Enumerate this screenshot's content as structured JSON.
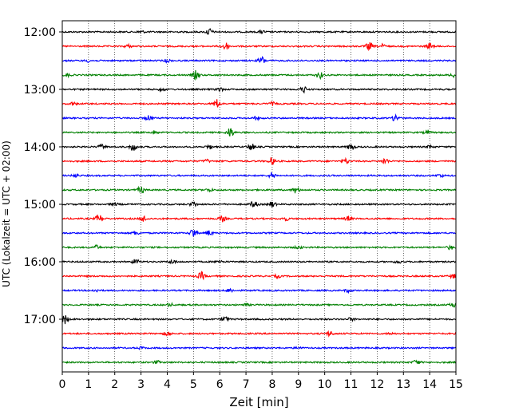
{
  "chart_data": {
    "type": "line",
    "xlabel": "Zeit  [min]",
    "ylabel": "UTC (Lokalzeit = UTC + 02:00)",
    "xlim": [
      0,
      15
    ],
    "x_ticks": [
      0,
      1,
      2,
      3,
      4,
      5,
      6,
      7,
      8,
      9,
      10,
      11,
      12,
      13,
      14,
      15
    ],
    "y_tick_labels": [
      "12:00",
      "13:00",
      "14:00",
      "15:00",
      "16:00",
      "17:00"
    ],
    "grid": true,
    "trace_colors": [
      "#000000",
      "#ff0000",
      "#0000ff",
      "#008000"
    ],
    "series": [
      {
        "start": "12:00",
        "events": [
          [
            5.6,
            0.7
          ],
          [
            7.6,
            0.3
          ],
          [
            3.0,
            0.25
          ]
        ]
      },
      {
        "start": "12:15",
        "events": [
          [
            6.2,
            0.9
          ],
          [
            11.7,
            0.8
          ],
          [
            14.0,
            0.6
          ],
          [
            12.2,
            0.4
          ],
          [
            2.5,
            0.3
          ]
        ]
      },
      {
        "start": "12:30",
        "events": [
          [
            7.6,
            0.8
          ],
          [
            4.0,
            0.3
          ],
          [
            1.0,
            0.25
          ]
        ]
      },
      {
        "start": "12:45",
        "events": [
          [
            5.1,
            0.9
          ],
          [
            9.8,
            0.7
          ],
          [
            14.9,
            0.4
          ],
          [
            0.2,
            0.3
          ]
        ]
      },
      {
        "start": "13:00",
        "events": [
          [
            9.2,
            0.6
          ],
          [
            6.0,
            0.4
          ],
          [
            3.8,
            0.3
          ]
        ]
      },
      {
        "start": "13:15",
        "events": [
          [
            5.9,
            0.9
          ],
          [
            0.4,
            0.3
          ],
          [
            8.0,
            0.3
          ]
        ]
      },
      {
        "start": "13:30",
        "events": [
          [
            12.7,
            0.7
          ],
          [
            3.3,
            0.5
          ],
          [
            7.4,
            0.3
          ]
        ]
      },
      {
        "start": "13:45",
        "events": [
          [
            6.4,
            1.0
          ],
          [
            3.5,
            0.3
          ],
          [
            13.9,
            0.3
          ]
        ]
      },
      {
        "start": "14:00",
        "events": [
          [
            2.7,
            0.8
          ],
          [
            7.2,
            0.7
          ],
          [
            11.0,
            0.8
          ],
          [
            1.5,
            0.5
          ],
          [
            5.6,
            0.4
          ],
          [
            14.0,
            0.3
          ]
        ]
      },
      {
        "start": "14:15",
        "events": [
          [
            8.0,
            0.7
          ],
          [
            12.3,
            0.6
          ],
          [
            10.8,
            0.5
          ],
          [
            5.5,
            0.3
          ]
        ]
      },
      {
        "start": "14:30",
        "events": [
          [
            8.0,
            0.6
          ],
          [
            0.5,
            0.3
          ],
          [
            14.4,
            0.3
          ]
        ]
      },
      {
        "start": "14:45",
        "events": [
          [
            3.0,
            0.7
          ],
          [
            8.9,
            0.6
          ],
          [
            5.6,
            0.3
          ]
        ]
      },
      {
        "start": "15:00",
        "events": [
          [
            7.3,
            0.7
          ],
          [
            8.0,
            0.6
          ],
          [
            5.0,
            0.5
          ],
          [
            2.0,
            0.3
          ]
        ]
      },
      {
        "start": "15:15",
        "events": [
          [
            1.4,
            0.8
          ],
          [
            3.1,
            0.6
          ],
          [
            6.1,
            0.6
          ],
          [
            10.9,
            0.5
          ],
          [
            8.5,
            0.4
          ]
        ]
      },
      {
        "start": "15:30",
        "events": [
          [
            5.0,
            1.0
          ],
          [
            5.6,
            0.5
          ],
          [
            2.8,
            0.4
          ]
        ]
      },
      {
        "start": "15:45",
        "events": [
          [
            1.3,
            0.4
          ],
          [
            9.0,
            0.3
          ],
          [
            14.8,
            0.4
          ]
        ]
      },
      {
        "start": "16:00",
        "events": [
          [
            2.8,
            0.5
          ],
          [
            4.2,
            0.4
          ],
          [
            6.0,
            0.3
          ],
          [
            12.8,
            0.3
          ]
        ]
      },
      {
        "start": "16:15",
        "events": [
          [
            5.3,
            0.8
          ],
          [
            14.9,
            0.4
          ],
          [
            8.2,
            0.3
          ]
        ]
      },
      {
        "start": "16:30",
        "events": [
          [
            6.4,
            0.4
          ],
          [
            10.9,
            0.3
          ],
          [
            1.3,
            0.25
          ]
        ]
      },
      {
        "start": "16:45",
        "events": [
          [
            14.9,
            0.5
          ],
          [
            4.1,
            0.3
          ],
          [
            7.0,
            0.2
          ]
        ]
      },
      {
        "start": "17:00",
        "events": [
          [
            0.1,
            0.9
          ],
          [
            6.2,
            0.5
          ],
          [
            11.0,
            0.3
          ]
        ]
      },
      {
        "start": "17:15",
        "events": [
          [
            4.0,
            0.5
          ],
          [
            10.2,
            0.5
          ],
          [
            12.5,
            0.2
          ]
        ]
      },
      {
        "start": "17:30",
        "events": [
          [
            3.0,
            0.2
          ],
          [
            9.0,
            0.2
          ]
        ]
      },
      {
        "start": "17:45",
        "events": [
          [
            13.5,
            0.5
          ],
          [
            3.6,
            0.3
          ]
        ]
      }
    ]
  }
}
